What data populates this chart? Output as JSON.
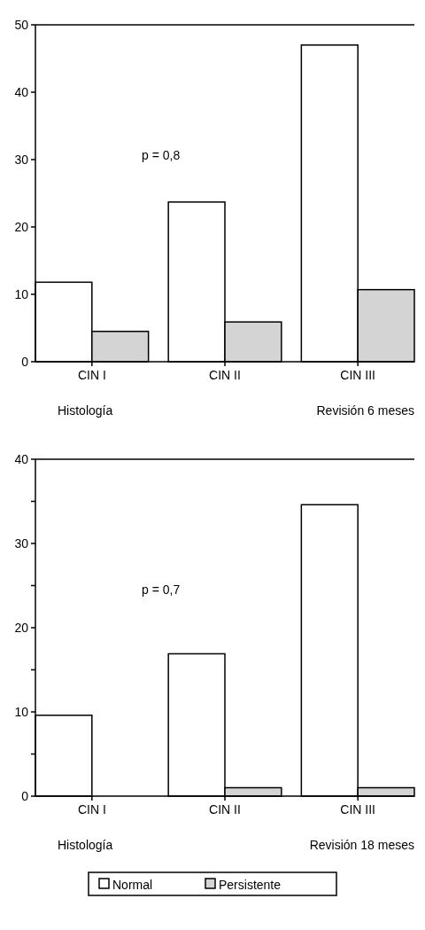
{
  "chart_data": [
    {
      "type": "bar",
      "categories": [
        "CIN I",
        "CIN II",
        "CIN III"
      ],
      "series": [
        {
          "color": "#ffffff",
          "values": [
            11.8,
            23.7,
            47
          ]
        },
        {
          "color": "#d4d4d4",
          "values": [
            4.5,
            5.9,
            10.7
          ]
        }
      ],
      "ylim": [
        0,
        50
      ],
      "yticks": [
        0,
        10,
        20,
        30,
        40,
        50
      ],
      "grid": false,
      "legend": false,
      "annotations": [
        "p = 0,8",
        "Histología",
        "Revisión 6 meses"
      ]
    },
    {
      "type": "bar",
      "categories": [
        "CIN I",
        "CIN II",
        "CIN III"
      ],
      "series": [
        {
          "name": "Normal",
          "color": "#ffffff",
          "values": [
            9.6,
            16.9,
            34.6
          ]
        },
        {
          "name": "Persistente",
          "color": "#d4d4d4",
          "values": [
            0,
            1,
            1
          ]
        }
      ],
      "ylim": [
        0,
        40
      ],
      "yticks": [
        0,
        {
          "value": 5,
          "label": null
        },
        10,
        {
          "value": 15,
          "label": null
        },
        20,
        {
          "value": 25,
          "label": null
        },
        30,
        {
          "value": 35,
          "label": null
        },
        40
      ],
      "grid": false,
      "legend": "bottom",
      "annotations": [
        "p = 0,7",
        "Histología",
        "Revisión 18 meses"
      ]
    }
  ]
}
